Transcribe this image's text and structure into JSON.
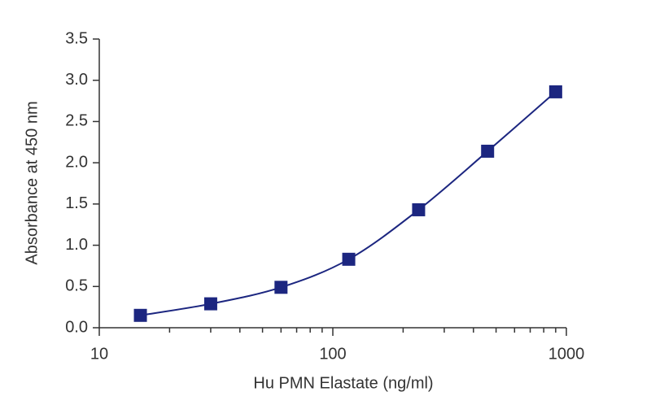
{
  "chart_data": {
    "type": "scatter",
    "x_label": "Hu PMN Elastate (ng/ml)",
    "y_label": "Absorbance at 450 nm",
    "x": [
      15,
      30,
      60,
      117,
      233,
      460,
      900
    ],
    "series": [
      {
        "color": "#1c2680",
        "values": [
          0.15,
          0.29,
          0.49,
          0.83,
          1.43,
          2.14,
          2.86
        ]
      }
    ],
    "xscale": "log",
    "xlim": [
      10,
      1000
    ],
    "xticks": [
      10,
      100,
      1000
    ],
    "xminorticks": [
      20,
      30,
      40,
      50,
      60,
      70,
      80,
      90,
      200,
      300,
      400,
      500,
      600,
      700,
      800,
      900
    ],
    "ylim": [
      0,
      3.5
    ],
    "yticks": [
      {
        "value": 0,
        "label": "0.0"
      },
      {
        "value": 0.5,
        "label": "0.5"
      },
      {
        "value": 1,
        "label": "1.0"
      },
      {
        "value": 1.5,
        "label": "1.5"
      },
      {
        "value": 2,
        "label": "2.0"
      },
      {
        "value": 2.5,
        "label": "2.5"
      },
      {
        "value": 3,
        "label": "3.0"
      },
      {
        "value": 3.5,
        "label": "3.5"
      }
    ],
    "grid": false
  }
}
